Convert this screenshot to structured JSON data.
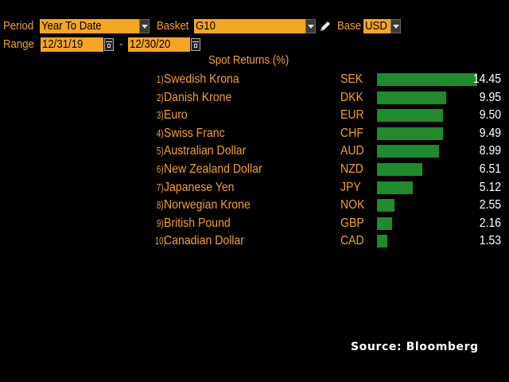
{
  "controls": {
    "period_label": "Period",
    "period_value": "Year To Date",
    "basket_label": "Basket",
    "basket_value": "G10",
    "base_label": "Base",
    "base_value": "USD",
    "range_label": "Range",
    "range_start": "12/31/19",
    "range_separator": "-",
    "range_end": "12/30/20"
  },
  "icons": {
    "period_dropdown": "chevron-down-icon",
    "basket_dropdown": "chevron-down-icon",
    "base_dropdown": "chevron-down-icon",
    "edit": "pencil-icon",
    "calendar": "calendar-icon"
  },
  "colors": {
    "background": "#000000",
    "label": "#f0a030",
    "field_bg": "#f5a623",
    "bar": "#1f8a2e",
    "value_text": "#ffffff"
  },
  "chart_data": {
    "type": "bar",
    "orientation": "horizontal",
    "title": "Spot Returns (%)",
    "xlim": [
      0,
      14.45
    ],
    "rows": [
      {
        "rank": "1)",
        "name": "Swedish Krona",
        "code": "SEK",
        "value": 14.45,
        "label": "14.45"
      },
      {
        "rank": "2)",
        "name": "Danish Krone",
        "code": "DKK",
        "value": 9.95,
        "label": "9.95"
      },
      {
        "rank": "3)",
        "name": "Euro",
        "code": "EUR",
        "value": 9.5,
        "label": "9.50"
      },
      {
        "rank": "4)",
        "name": "Swiss Franc",
        "code": "CHF",
        "value": 9.49,
        "label": "9.49"
      },
      {
        "rank": "5)",
        "name": "Australian Dollar",
        "code": "AUD",
        "value": 8.99,
        "label": "8.99"
      },
      {
        "rank": "6)",
        "name": "New Zealand Dollar",
        "code": "NZD",
        "value": 6.51,
        "label": "6.51"
      },
      {
        "rank": "7)",
        "name": "Japanese Yen",
        "code": "JPY",
        "value": 5.12,
        "label": "5.12"
      },
      {
        "rank": "8)",
        "name": "Norwegian Krone",
        "code": "NOK",
        "value": 2.55,
        "label": "2.55"
      },
      {
        "rank": "9)",
        "name": "British Pound",
        "code": "GBP",
        "value": 2.16,
        "label": "2.16"
      },
      {
        "rank": "10)",
        "name": "Canadian Dollar",
        "code": "CAD",
        "value": 1.53,
        "label": "1.53"
      }
    ]
  },
  "source": "Source: Bloomberg"
}
